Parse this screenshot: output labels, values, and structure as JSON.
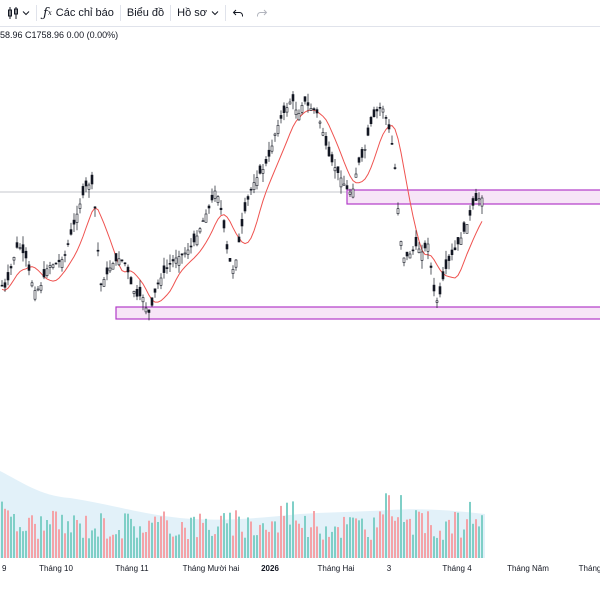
{
  "toolbar": {
    "indicators_label": "Các chỉ báo",
    "chart_label": "Biểu đồ",
    "profile_label": "Hồ sơ"
  },
  "ohlc_text": "58.96 C1758.96 0.00 (0.00%)",
  "colors": {
    "up": "#26a69a",
    "down": "#ef5350",
    "candle": "#131722",
    "ma_line": "#ef5350",
    "zone_fill": "#f7e5f7",
    "zone_border": "#b23bc9",
    "volume_ma_area": "#d6ebf7",
    "vol_up": "#7fcfc7",
    "vol_down": "#f4a3a8"
  },
  "chart_data": {
    "type": "candlestick",
    "x_labels": [
      "9",
      "Tháng 10",
      "Tháng 11",
      "Tháng Mười hai",
      "2026",
      "Tháng Hai",
      "3",
      "Tháng 4",
      "Tháng Năm",
      "Tháng"
    ],
    "bold_labels": [
      "2026"
    ],
    "last_close": 1758.96,
    "grid": false
  }
}
